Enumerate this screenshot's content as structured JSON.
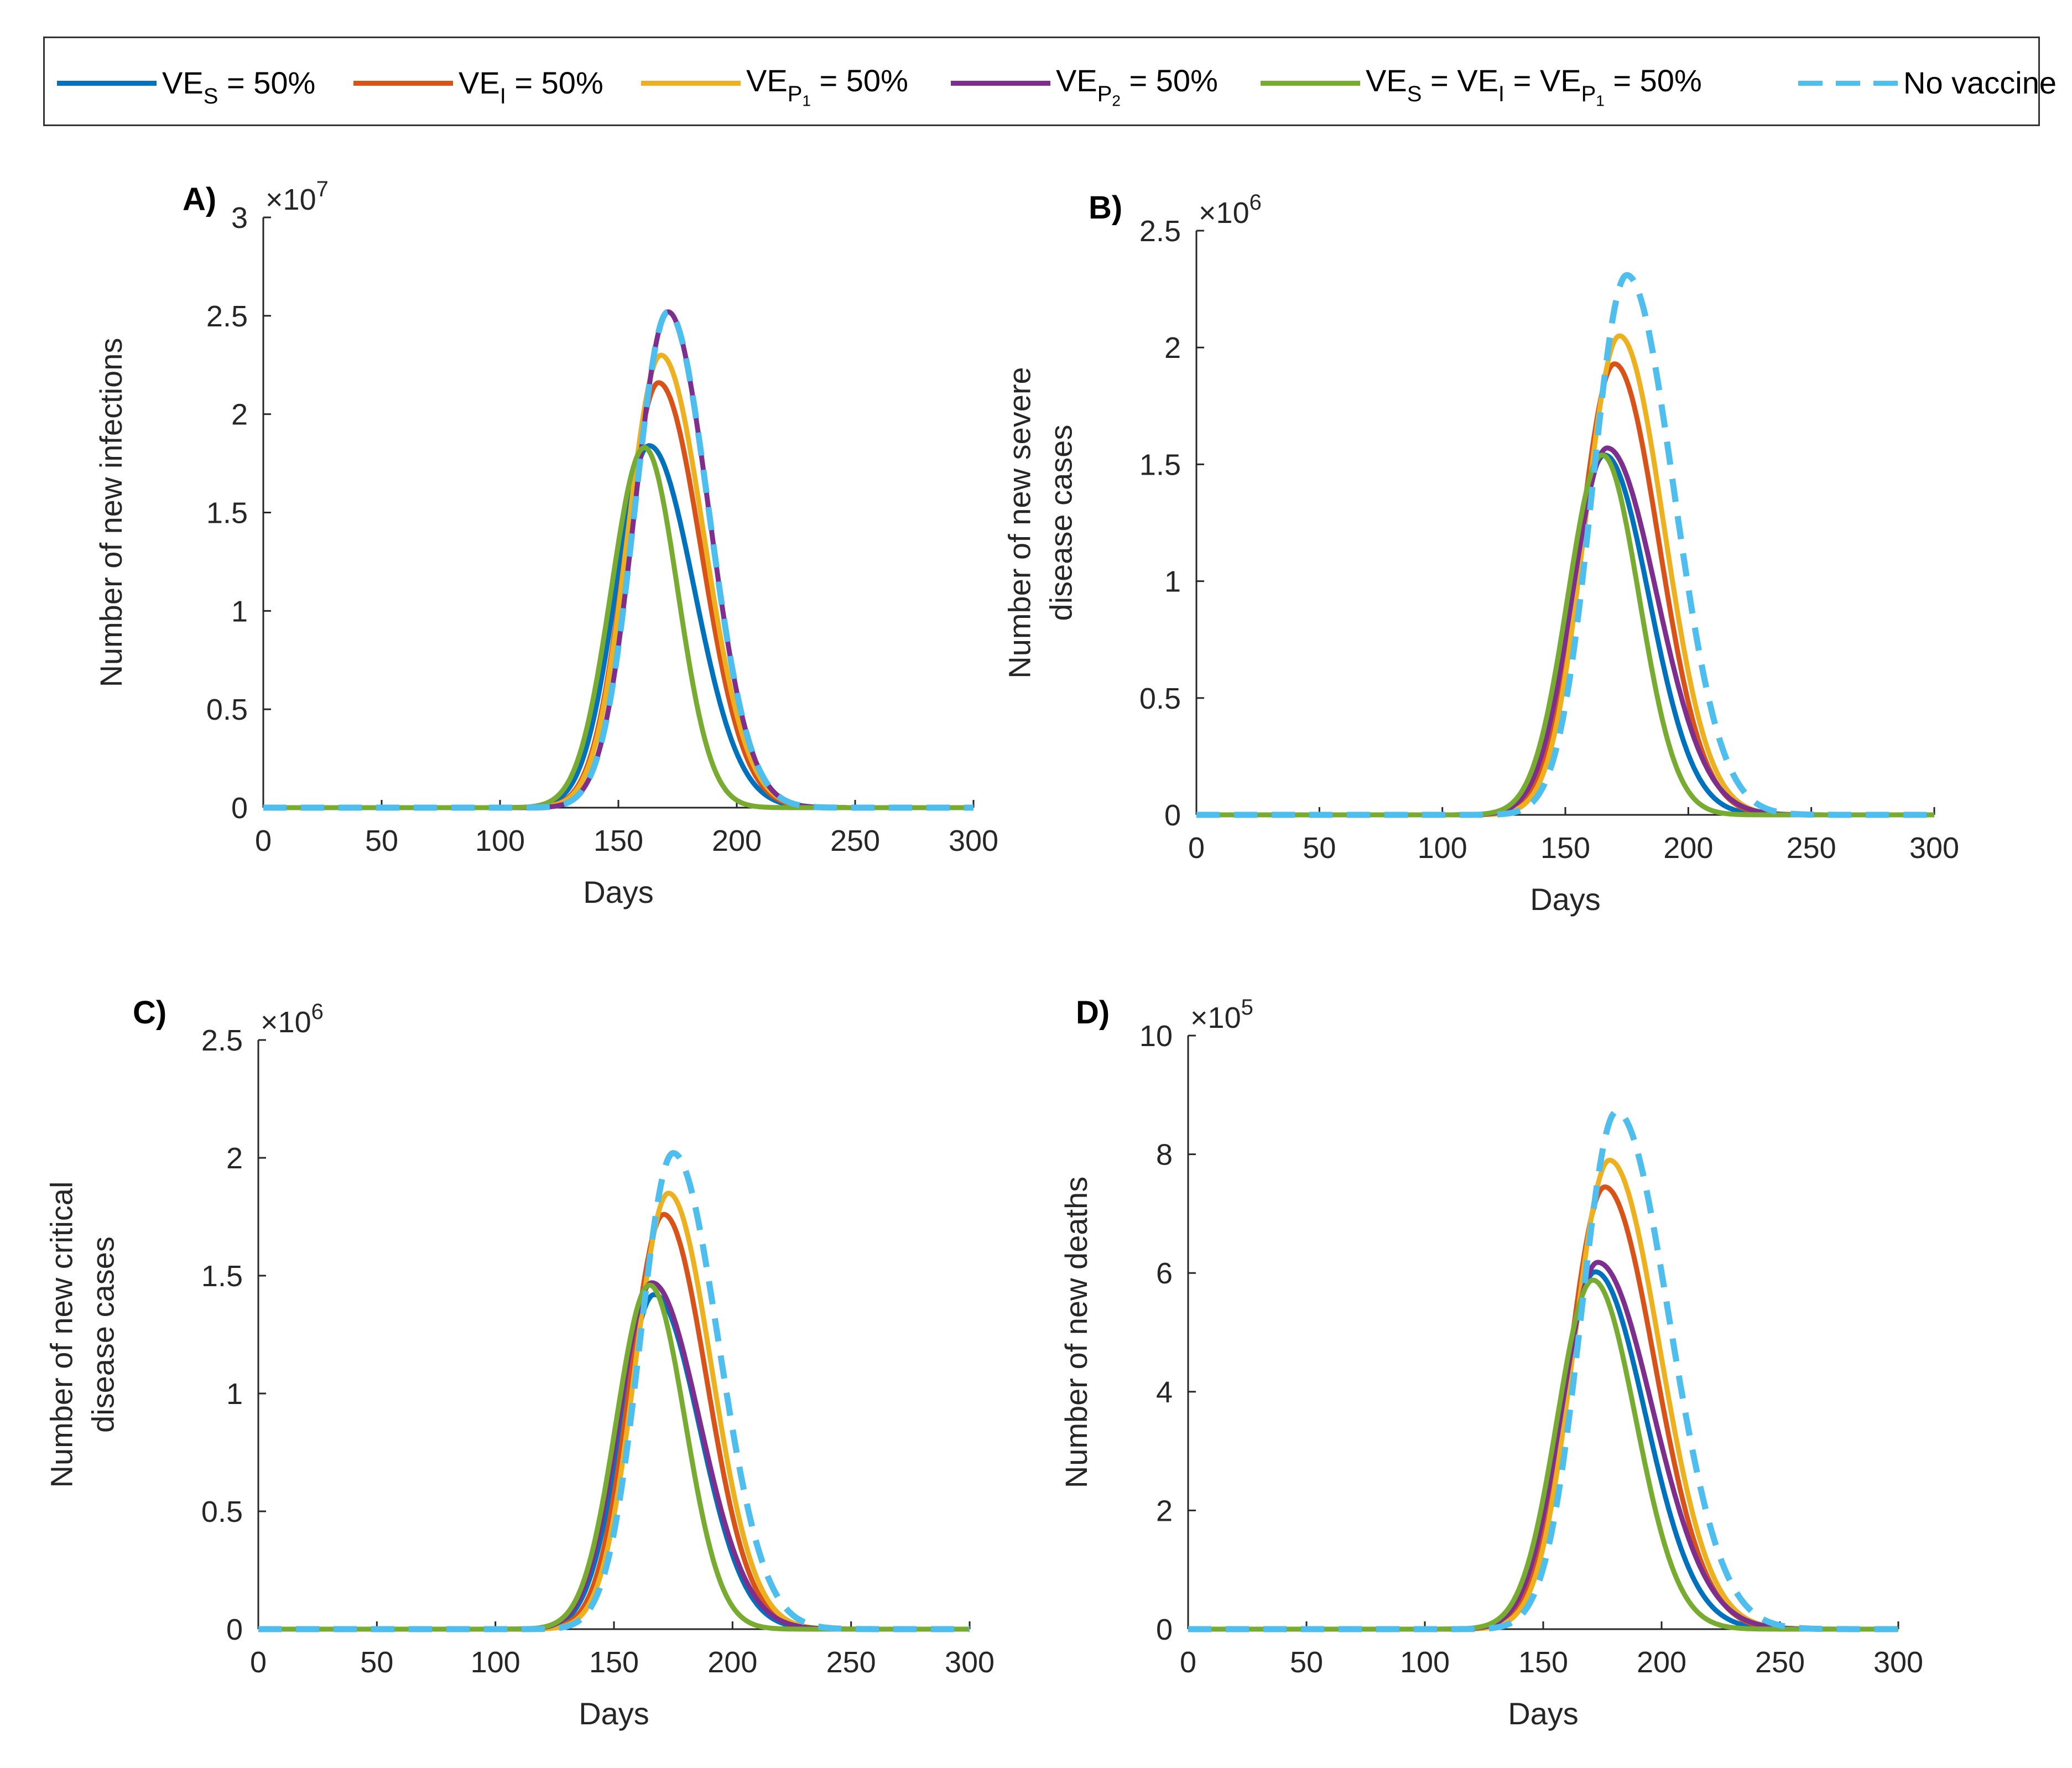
{
  "legend": {
    "entries": [
      {
        "base": "VE",
        "sub": "S",
        "subsub": "",
        "rest": " = 50%"
      },
      {
        "base": "VE",
        "sub": "I",
        "subsub": "",
        "rest": " = 50%"
      },
      {
        "base": "VE",
        "sub": "P",
        "subsub": "1",
        "rest": " = 50%"
      },
      {
        "base": "VE",
        "sub": "P",
        "subsub": "2",
        "rest": " = 50%"
      },
      {
        "base": "VE",
        "sub": "S",
        "subsub": "",
        "rest": " = VE",
        "sub2": "I",
        "rest2": " = VE",
        "sub3": "P",
        "subsub3": "1",
        "rest3": " = 50%"
      },
      {
        "base": "No vaccine",
        "sub": "",
        "subsub": "",
        "rest": ""
      }
    ]
  },
  "chart_data": [
    {
      "type": "line",
      "panel": "A)",
      "xlabel": "Days",
      "ylabel": [
        "Number of new infections"
      ],
      "exponent_base": "×10",
      "exponent_power": "7",
      "xlim": [
        0,
        300
      ],
      "ylim": [
        0,
        3
      ],
      "xticks": [
        "0",
        "50",
        "100",
        "150",
        "200",
        "250",
        "300"
      ],
      "yticks": [
        "0",
        "0.5",
        "1",
        "1.5",
        "2",
        "2.5",
        "3"
      ],
      "series": [
        {
          "name": "VE_S = 50%",
          "color": "#0072BD",
          "dashed": false,
          "peak_x": 163,
          "peak": 1.84,
          "sigma_left": 14,
          "sigma_right": 19
        },
        {
          "name": "VE_I = 50%",
          "color": "#D95319",
          "dashed": false,
          "peak_x": 167,
          "peak": 2.16,
          "sigma_left": 14,
          "sigma_right": 18
        },
        {
          "name": "VE_P1 = 50%",
          "color": "#EDB120",
          "dashed": false,
          "peak_x": 168,
          "peak": 2.3,
          "sigma_left": 14,
          "sigma_right": 18
        },
        {
          "name": "VE_P2 = 50%",
          "color": "#7E2F8E",
          "dashed": false,
          "peak_x": 171,
          "peak": 2.52,
          "sigma_left": 14,
          "sigma_right": 17
        },
        {
          "name": "VE_S = VE_I = VE_P1 = 50%",
          "color": "#77AC30",
          "dashed": false,
          "peak_x": 161,
          "peak": 1.83,
          "sigma_left": 14,
          "sigma_right": 14
        },
        {
          "name": "No vaccine",
          "color": "#4DBEEE",
          "dashed": true,
          "peak_x": 171,
          "peak": 2.52,
          "sigma_left": 14,
          "sigma_right": 17
        }
      ]
    },
    {
      "type": "line",
      "panel": "B)",
      "xlabel": "Days",
      "ylabel": [
        "Number of new severe",
        "disease cases"
      ],
      "exponent_base": "×10",
      "exponent_power": "6",
      "xlim": [
        0,
        300
      ],
      "ylim": [
        0,
        2.5
      ],
      "xticks": [
        "0",
        "50",
        "100",
        "150",
        "200",
        "250",
        "300"
      ],
      "yticks": [
        "0",
        "0.5",
        "1",
        "1.5",
        "2",
        "2.5"
      ],
      "series": [
        {
          "name": "VE_S = 50%",
          "color": "#0072BD",
          "dashed": false,
          "peak_x": 166,
          "peak": 1.54,
          "sigma_left": 14,
          "sigma_right": 18
        },
        {
          "name": "VE_I = 50%",
          "color": "#D95319",
          "dashed": false,
          "peak_x": 170,
          "peak": 1.93,
          "sigma_left": 14,
          "sigma_right": 18
        },
        {
          "name": "VE_P1 = 50%",
          "color": "#EDB120",
          "dashed": false,
          "peak_x": 172,
          "peak": 2.05,
          "sigma_left": 14,
          "sigma_right": 18
        },
        {
          "name": "VE_P2 = 50%",
          "color": "#7E2F8E",
          "dashed": false,
          "peak_x": 167,
          "peak": 1.57,
          "sigma_left": 14,
          "sigma_right": 20
        },
        {
          "name": "VE_S = VE_I = VE_P1 = 50%",
          "color": "#77AC30",
          "dashed": false,
          "peak_x": 165,
          "peak": 1.54,
          "sigma_left": 14,
          "sigma_right": 15
        },
        {
          "name": "No vaccine",
          "color": "#4DBEEE",
          "dashed": true,
          "peak_x": 175,
          "peak": 2.31,
          "sigma_left": 14,
          "sigma_right": 19
        }
      ]
    },
    {
      "type": "line",
      "panel": "C)",
      "xlabel": "Days",
      "ylabel": [
        "Number of new critical",
        "disease cases"
      ],
      "exponent_base": "×10",
      "exponent_power": "6",
      "xlim": [
        0,
        300
      ],
      "ylim": [
        0,
        2.5
      ],
      "xticks": [
        "0",
        "50",
        "100",
        "150",
        "200",
        "250",
        "300"
      ],
      "yticks": [
        "0",
        "0.5",
        "1",
        "1.5",
        "2",
        "2.5"
      ],
      "series": [
        {
          "name": "VE_S = 50%",
          "color": "#0072BD",
          "dashed": false,
          "peak_x": 167,
          "peak": 1.42,
          "sigma_left": 14,
          "sigma_right": 19
        },
        {
          "name": "VE_I = 50%",
          "color": "#D95319",
          "dashed": false,
          "peak_x": 171,
          "peak": 1.76,
          "sigma_left": 14,
          "sigma_right": 18
        },
        {
          "name": "VE_P1 = 50%",
          "color": "#EDB120",
          "dashed": false,
          "peak_x": 173,
          "peak": 1.85,
          "sigma_left": 14,
          "sigma_right": 18
        },
        {
          "name": "VE_P2 = 50%",
          "color": "#7E2F8E",
          "dashed": false,
          "peak_x": 166,
          "peak": 1.47,
          "sigma_left": 14,
          "sigma_right": 20
        },
        {
          "name": "VE_S = VE_I = VE_P1 = 50%",
          "color": "#77AC30",
          "dashed": false,
          "peak_x": 165,
          "peak": 1.46,
          "sigma_left": 14,
          "sigma_right": 15
        },
        {
          "name": "No vaccine",
          "color": "#4DBEEE",
          "dashed": true,
          "peak_x": 175,
          "peak": 2.02,
          "sigma_left": 14,
          "sigma_right": 19
        }
      ]
    },
    {
      "type": "line",
      "panel": "D)",
      "xlabel": "Days",
      "ylabel": [
        "Number of new deaths"
      ],
      "exponent_base": "×10",
      "exponent_power": "5",
      "xlim": [
        0,
        300
      ],
      "ylim": [
        0,
        10
      ],
      "xticks": [
        "0",
        "50",
        "100",
        "150",
        "200",
        "250",
        "300"
      ],
      "yticks": [
        "0",
        "2",
        "4",
        "6",
        "8",
        "10"
      ],
      "series": [
        {
          "name": "VE_S = 50%",
          "color": "#0072BD",
          "dashed": false,
          "peak_x": 172,
          "peak": 6.02,
          "sigma_left": 15,
          "sigma_right": 21
        },
        {
          "name": "VE_I = 50%",
          "color": "#D95319",
          "dashed": false,
          "peak_x": 176,
          "peak": 7.45,
          "sigma_left": 15,
          "sigma_right": 21
        },
        {
          "name": "VE_P1 = 50%",
          "color": "#EDB120",
          "dashed": false,
          "peak_x": 178,
          "peak": 7.9,
          "sigma_left": 15,
          "sigma_right": 21
        },
        {
          "name": "VE_P2 = 50%",
          "color": "#7E2F8E",
          "dashed": false,
          "peak_x": 173,
          "peak": 6.18,
          "sigma_left": 15,
          "sigma_right": 23
        },
        {
          "name": "VE_S = VE_I = VE_P1 = 50%",
          "color": "#77AC30",
          "dashed": false,
          "peak_x": 171,
          "peak": 5.88,
          "sigma_left": 15,
          "sigma_right": 18
        },
        {
          "name": "No vaccine",
          "color": "#4DBEEE",
          "dashed": true,
          "peak_x": 181,
          "peak": 8.72,
          "sigma_left": 15,
          "sigma_right": 22
        }
      ]
    }
  ]
}
